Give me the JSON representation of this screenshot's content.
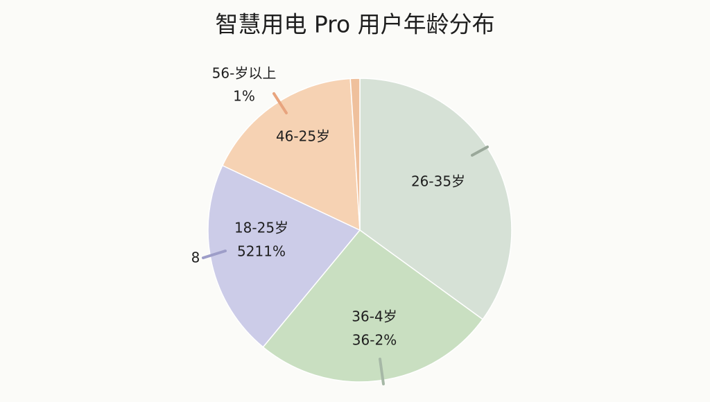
{
  "chart_data": {
    "type": "pie",
    "title": "智慧用电 Pro 用户年龄分布",
    "categories": [
      "26-35岁",
      "36-4岁",
      "18-25岁",
      "46-25岁",
      "56-岁以上"
    ],
    "values": [
      35,
      26,
      21,
      17,
      1
    ],
    "value_labels": [
      null,
      null,
      null,
      null,
      "1%"
    ],
    "colors": [
      "#d6e1d6",
      "#c9dfc1",
      "#cccce8",
      "#f6d2b3",
      "#efc09c"
    ],
    "annotations": [
      "36-2%",
      "5211%",
      "8"
    ]
  }
}
